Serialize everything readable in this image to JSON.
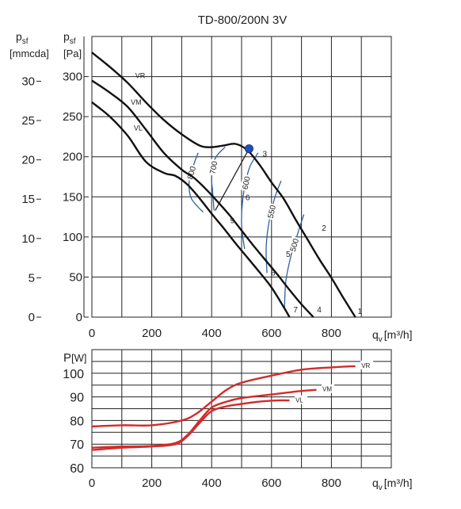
{
  "chart_data": [
    {
      "type": "line",
      "title": "TD-800/200N 3V",
      "xlabel": "q",
      "xlabel_sub": "v",
      "xlabel_unit": "[m³/h]",
      "ylabel_pa": "p",
      "ylabel_pa_sub": "sf",
      "ylabel_pa_unit": "[Pa]",
      "ylabel_mm": "p",
      "ylabel_mm_sub": "sf",
      "ylabel_mm_unit": "[mmcda]",
      "xlim": [
        0,
        1000
      ],
      "ylim": [
        0,
        350
      ],
      "grid": true,
      "x_ticks": [
        0,
        200,
        400,
        600,
        800
      ],
      "y_ticks_pa": [
        0,
        50,
        100,
        150,
        200,
        250,
        300
      ],
      "y_ticks_mm": [
        0,
        5,
        10,
        15,
        20,
        25,
        30
      ],
      "series": [
        {
          "name": "VR",
          "x": [
            0,
            60,
            120,
            180,
            240,
            300,
            360,
            400,
            440,
            480,
            520,
            560,
            600,
            640,
            680,
            720,
            760,
            800,
            840,
            880
          ],
          "y": [
            330,
            312,
            292,
            268,
            246,
            228,
            214,
            212,
            214,
            216,
            208,
            190,
            168,
            148,
            122,
            97,
            72,
            49,
            24,
            0
          ]
        },
        {
          "name": "VM",
          "x": [
            0,
            60,
            120,
            180,
            240,
            300,
            340,
            380,
            420,
            460,
            500,
            540,
            580,
            620,
            660,
            700,
            740
          ],
          "y": [
            295,
            280,
            262,
            234,
            205,
            184,
            174,
            160,
            144,
            127,
            108,
            89,
            71,
            53,
            34,
            16,
            0
          ]
        },
        {
          "name": "VL",
          "x": [
            0,
            60,
            120,
            180,
            240,
            280,
            320,
            360,
            400,
            440,
            480,
            520,
            560,
            600,
            640,
            660
          ],
          "y": [
            268,
            250,
            226,
            194,
            180,
            176,
            165,
            148,
            129,
            111,
            92,
            74,
            56,
            37,
            13,
            0
          ]
        }
      ],
      "operating_point": {
        "x": 525,
        "y": 210
      },
      "point_labels": [
        {
          "label": "1",
          "x": 888,
          "y": 4
        },
        {
          "label": "2",
          "x": 768,
          "y": 108
        },
        {
          "label": "3",
          "x": 570,
          "y": 200
        },
        {
          "label": "4",
          "x": 752,
          "y": 6
        },
        {
          "label": "5",
          "x": 648,
          "y": 75
        },
        {
          "label": "6",
          "x": 513,
          "y": 146
        },
        {
          "label": "7",
          "x": 673,
          "y": 6
        },
        {
          "label": "8",
          "x": 598,
          "y": 52
        },
        {
          "label": "9",
          "x": 462,
          "y": 117
        }
      ],
      "system_lines": [
        {
          "from": [
            412,
            133
          ],
          "to": [
            525,
            210
          ]
        }
      ],
      "iso_curves": [
        {
          "label": "800",
          "x": [
            355,
            340,
            325,
            330,
            353,
            372
          ],
          "y": [
            205,
            190,
            170,
            150,
            138,
            131
          ]
        },
        {
          "label": "700",
          "x": [
            445,
            412,
            400,
            403,
            408
          ],
          "y": [
            212,
            198,
            175,
            158,
            133
          ]
        },
        {
          "label": "600",
          "x": [
            555,
            525,
            505,
            500,
            510
          ],
          "y": [
            205,
            185,
            150,
            115,
            85
          ]
        },
        {
          "label": "550",
          "x": [
            632,
            610,
            590,
            582,
            585
          ],
          "y": [
            170,
            148,
            115,
            85,
            55
          ]
        },
        {
          "label": "500",
          "x": [
            708,
            688,
            664,
            648,
            643
          ],
          "y": [
            128,
            105,
            75,
            45,
            10
          ]
        }
      ],
      "series_labels": [
        {
          "name": "VR",
          "x": 145,
          "y": 298
        },
        {
          "name": "VM",
          "x": 130,
          "y": 265
        },
        {
          "name": "VL",
          "x": 140,
          "y": 233
        }
      ]
    },
    {
      "type": "line",
      "ylabel": "P",
      "ylabel_unit": "[W]",
      "xlabel": "q",
      "xlabel_sub": "v",
      "xlabel_unit": "[m³/h]",
      "xlim": [
        0,
        1000
      ],
      "ylim": [
        60,
        110
      ],
      "grid": true,
      "x_ticks": [
        0,
        200,
        400,
        600,
        800
      ],
      "y_ticks": [
        60,
        70,
        80,
        90,
        100
      ],
      "series": [
        {
          "name": "VR",
          "x": [
            0,
            100,
            200,
            300,
            350,
            400,
            450,
            500,
            600,
            700,
            800,
            880
          ],
          "y": [
            77.5,
            78,
            78,
            80,
            83,
            88,
            93,
            96,
            99,
            101.5,
            102.5,
            103
          ]
        },
        {
          "name": "VM",
          "x": [
            0,
            100,
            200,
            280,
            320,
            360,
            400,
            450,
            500,
            600,
            700,
            750
          ],
          "y": [
            68.5,
            69,
            69.2,
            70.5,
            74,
            80,
            85.5,
            88,
            89.5,
            91,
            92.5,
            93
          ]
        },
        {
          "name": "VL",
          "x": [
            0,
            100,
            200,
            280,
            320,
            360,
            400,
            450,
            500,
            560,
            620,
            660
          ],
          "y": [
            67.5,
            68.5,
            69,
            70,
            73.5,
            79,
            84,
            86,
            87,
            88,
            88.5,
            88.5
          ]
        }
      ],
      "series_labels": [
        {
          "name": "VR",
          "x": 900,
          "y": 103
        },
        {
          "name": "VM",
          "x": 770,
          "y": 93
        },
        {
          "name": "VL",
          "x": 680,
          "y": 88.3
        }
      ]
    }
  ]
}
